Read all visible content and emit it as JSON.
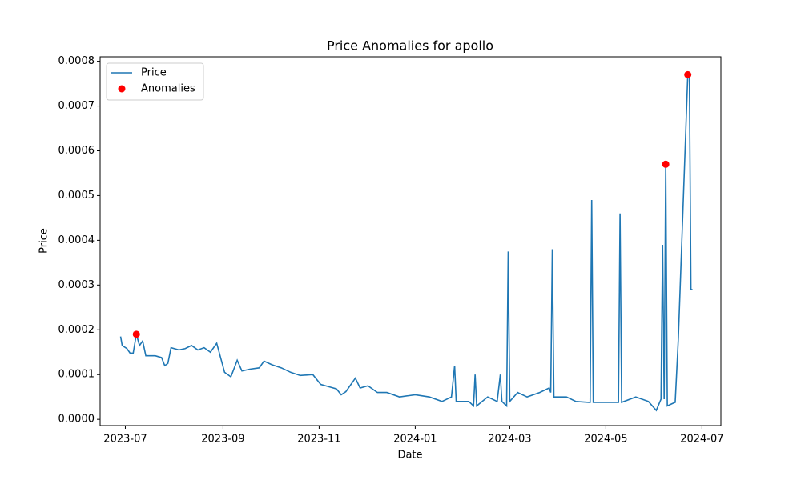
{
  "chart_data": {
    "type": "line",
    "title": "Price Anomalies for apollo",
    "x_label": "Date",
    "y_label": "Price",
    "xlim": [
      "2023-06-15",
      "2024-07-13"
    ],
    "xticks": [
      "2023-07",
      "2023-09",
      "2023-11",
      "2024-01",
      "2024-03",
      "2024-05",
      "2024-07"
    ],
    "ylim": [
      -1.4e-05,
      0.00081
    ],
    "yticks": [
      {
        "value": 0,
        "label": "0.0000"
      },
      {
        "value": 0.0001,
        "label": "0.0001"
      },
      {
        "value": 0.0002,
        "label": "0.0002"
      },
      {
        "value": 0.0003,
        "label": "0.0003"
      },
      {
        "value": 0.0004,
        "label": "0.0004"
      },
      {
        "value": 0.0005,
        "label": "0.0005"
      },
      {
        "value": 0.0006,
        "label": "0.0006"
      },
      {
        "value": 0.0007,
        "label": "0.0007"
      },
      {
        "value": 0.0008,
        "label": "0.0008"
      }
    ],
    "legend": "upper left",
    "series": [
      {
        "name": "Price",
        "type": "line",
        "color": "#1f77b4",
        "x": [
          "2023-06-28",
          "2023-06-29",
          "2023-07-02",
          "2023-07-04",
          "2023-07-06",
          "2023-07-08",
          "2023-07-10",
          "2023-07-12",
          "2023-07-14",
          "2023-07-20",
          "2023-07-24",
          "2023-07-26",
          "2023-07-28",
          "2023-07-30",
          "2023-08-04",
          "2023-08-08",
          "2023-08-12",
          "2023-08-16",
          "2023-08-20",
          "2023-08-24",
          "2023-08-28",
          "2023-09-02",
          "2023-09-06",
          "2023-09-10",
          "2023-09-13",
          "2023-09-18",
          "2023-09-24",
          "2023-09-27",
          "2023-10-02",
          "2023-10-08",
          "2023-10-14",
          "2023-10-20",
          "2023-10-28",
          "2023-11-02",
          "2023-11-08",
          "2023-11-12",
          "2023-11-15",
          "2023-11-18",
          "2023-11-24",
          "2023-11-27",
          "2023-12-02",
          "2023-12-08",
          "2023-12-14",
          "2023-12-22",
          "2024-01-01",
          "2024-01-10",
          "2024-01-18",
          "2024-01-24",
          "2024-01-26",
          "2024-01-27",
          "2024-02-04",
          "2024-02-07",
          "2024-02-08",
          "2024-02-09",
          "2024-02-16",
          "2024-02-22",
          "2024-02-24",
          "2024-02-25",
          "2024-02-28",
          "2024-02-29",
          "2024-03-01",
          "2024-03-06",
          "2024-03-12",
          "2024-03-20",
          "2024-03-26",
          "2024-03-27",
          "2024-03-28",
          "2024-03-29",
          "2024-04-06",
          "2024-04-12",
          "2024-04-20",
          "2024-04-21",
          "2024-04-22",
          "2024-04-23",
          "2024-05-09",
          "2024-05-10",
          "2024-05-11",
          "2024-05-20",
          "2024-05-28",
          "2024-06-02",
          "2024-06-05",
          "2024-06-06",
          "2024-06-07",
          "2024-06-08",
          "2024-06-09",
          "2024-06-12",
          "2024-06-14",
          "2024-06-16",
          "2024-06-22",
          "2024-06-23",
          "2024-06-24",
          "2024-06-25"
        ],
        "values": [
          0.000185,
          0.000165,
          0.000158,
          0.000148,
          0.000148,
          0.00019,
          0.000165,
          0.000175,
          0.000142,
          0.000142,
          0.000138,
          0.00012,
          0.000125,
          0.00016,
          0.000155,
          0.000158,
          0.000165,
          0.000155,
          0.00016,
          0.00015,
          0.00017,
          0.000105,
          9.5e-05,
          0.000132,
          0.000108,
          0.000112,
          0.000115,
          0.00013,
          0.000122,
          0.000115,
          0.000105,
          9.8e-05,
          0.0001,
          7.8e-05,
          7.2e-05,
          6.8e-05,
          5.5e-05,
          6.2e-05,
          9.2e-05,
          7e-05,
          7.5e-05,
          6e-05,
          6e-05,
          5e-05,
          5.5e-05,
          5e-05,
          4e-05,
          5e-05,
          0.00012,
          4e-05,
          4e-05,
          3e-05,
          0.0001,
          3e-05,
          5e-05,
          4e-05,
          0.0001,
          4e-05,
          3e-05,
          0.000375,
          4e-05,
          6e-05,
          5e-05,
          6e-05,
          7e-05,
          6e-05,
          0.00038,
          5e-05,
          5e-05,
          4e-05,
          3.8e-05,
          3.8e-05,
          0.00049,
          3.8e-05,
          3.8e-05,
          0.00046,
          3.8e-05,
          5e-05,
          4e-05,
          2e-05,
          4.5e-05,
          0.00039,
          4.5e-05,
          0.00057,
          3e-05,
          3.5e-05,
          3.8e-05,
          0.00018,
          0.00077,
          0.00077,
          0.00029,
          0.00029
        ]
      },
      {
        "name": "Anomalies",
        "type": "scatter",
        "color": "#ff0000",
        "x": [
          "2023-07-08",
          "2024-06-08",
          "2024-06-22"
        ],
        "values": [
          0.00019,
          0.00057,
          0.00077
        ]
      }
    ]
  }
}
